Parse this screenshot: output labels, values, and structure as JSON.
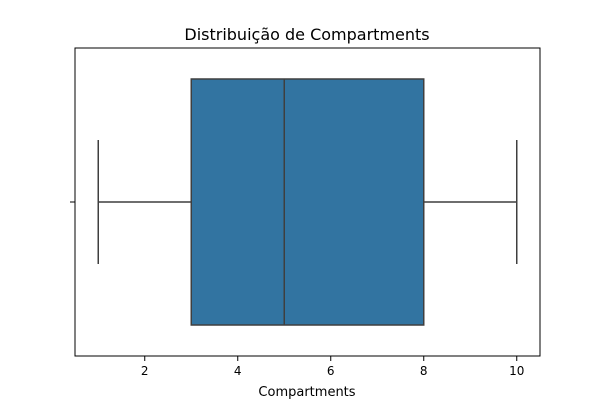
{
  "chart_data": {
    "type": "box",
    "title": "Distribuição de Compartments",
    "xlabel": "Compartments",
    "ylabel": "",
    "xlim": [
      0.5,
      10.5
    ],
    "x_ticks": [
      2,
      4,
      6,
      8,
      10
    ],
    "grid": false,
    "stats": {
      "min": 1,
      "q1": 3,
      "median": 5,
      "q3": 8,
      "max": 10
    },
    "colors": {
      "box_fill": "#3274a1",
      "line": "#3f3f3f"
    }
  }
}
